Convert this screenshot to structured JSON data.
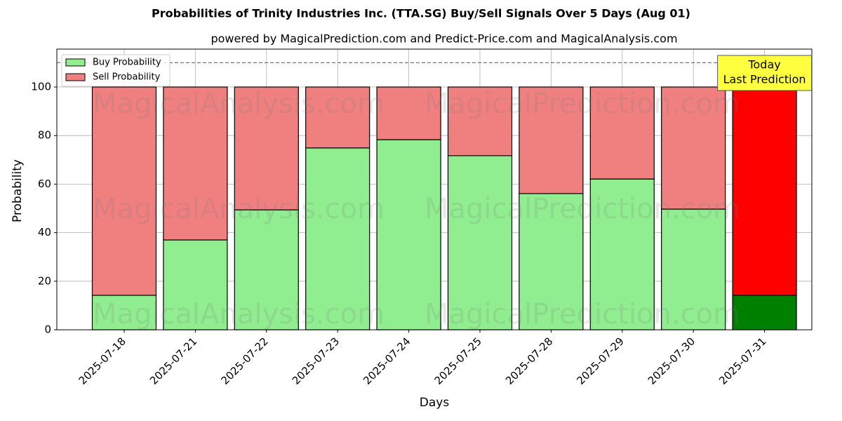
{
  "chart_data": {
    "type": "stacked_bar",
    "title": "Probabilities of Trinity Industries Inc. (TTA.SG) Buy/Sell Signals Over 5 Days (Aug 01)",
    "subtitle": "powered by MagicalPrediction.com and Predict-Price.com and MagicalAnalysis.com",
    "x_label": "Days",
    "y_label": "Probability",
    "categories": [
      "2025-07-18",
      "2025-07-21",
      "2025-07-22",
      "2025-07-23",
      "2025-07-24",
      "2025-07-25",
      "2025-07-28",
      "2025-07-29",
      "2025-07-30",
      "2025-07-31"
    ],
    "series": [
      {
        "name": "Buy Probability",
        "color": "#90ee90",
        "colors": [
          "#90ee90",
          "#90ee90",
          "#90ee90",
          "#90ee90",
          "#90ee90",
          "#90ee90",
          "#90ee90",
          "#90ee90",
          "#90ee90",
          "#008000"
        ],
        "values": [
          14.2,
          37,
          49.4,
          74.9,
          78.3,
          71.7,
          56.1,
          62.1,
          49.7,
          14.2
        ]
      },
      {
        "name": "Sell Probability",
        "color": "#f08080",
        "colors": [
          "#f08080",
          "#f08080",
          "#f08080",
          "#f08080",
          "#f08080",
          "#f08080",
          "#f08080",
          "#f08080",
          "#f08080",
          "#ff0000"
        ],
        "values": [
          85.8,
          63,
          50.6,
          25.1,
          21.7,
          28.3,
          43.9,
          37.9,
          50.3,
          85.8
        ]
      }
    ],
    "ylim": [
      0,
      115.6
    ],
    "yticks": [
      0,
      20,
      40,
      60,
      80,
      100
    ],
    "grid": true,
    "reference_line": 110,
    "legend": "upper left",
    "annotation": {
      "lines": [
        "Today",
        "Last Prediction"
      ],
      "color": "#ffff40"
    },
    "watermarks": [
      "MagicalAnalysis.com",
      "MagicalPrediction.com"
    ]
  }
}
